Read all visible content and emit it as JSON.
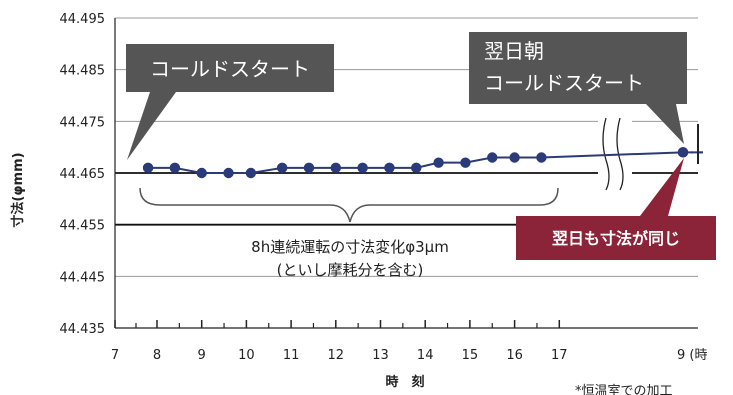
{
  "chart_data": {
    "type": "line",
    "ylabel": "寸法(φmm)",
    "xlabel": "時　刻",
    "ylim": [
      44.435,
      44.495
    ],
    "y_ticks": [
      44.495,
      44.485,
      44.475,
      44.465,
      44.455,
      44.445,
      44.435
    ],
    "y_tick_labels": [
      "44.495",
      "44.485",
      "44.475",
      "44.465",
      "44.455",
      "44.445",
      "44.435"
    ],
    "x_ticks": [
      7,
      8,
      9,
      10,
      11,
      12,
      13,
      14,
      15,
      16,
      17,
      24
    ],
    "x_tick_labels": [
      "7",
      "8",
      "9",
      "10",
      "11",
      "12",
      "13",
      "14",
      "15",
      "16",
      "17",
      "9 (時"
    ],
    "series": [
      {
        "x": [
          7.8,
          8.4,
          9.0,
          9.6,
          10.1,
          10.8,
          11.4,
          12.0,
          12.6,
          13.2,
          13.8,
          14.3,
          14.9,
          15.5,
          16.0,
          16.6,
          17.2,
          24.0
        ],
        "values": [
          44.466,
          44.466,
          44.465,
          44.465,
          44.465,
          44.466,
          44.466,
          44.466,
          44.466,
          44.466,
          44.466,
          44.467,
          44.467,
          44.468,
          44.468,
          44.468,
          44.469,
          44.469
        ]
      }
    ],
    "annotations": {
      "callout_start": "コールドスタート",
      "callout_next_line1": "翌日朝",
      "callout_next_line2": "コールドスタート",
      "callout_same": "翌日も寸法が同じ",
      "brace_line1": "8h連続運転の寸法変化φ3μm",
      "brace_line2": "(といし摩耗分を含む)",
      "footnote": "*恒温室での加工"
    },
    "colors": {
      "line": "#2b3a78",
      "marker": "#2b3a78",
      "callout_gray": "#555555",
      "callout_red": "#8b2438"
    }
  }
}
